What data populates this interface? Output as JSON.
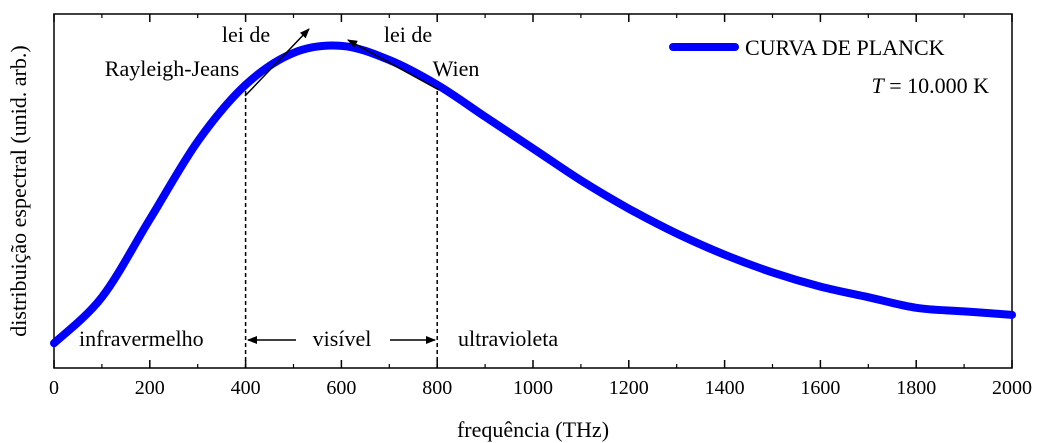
{
  "chart_data": {
    "type": "line",
    "xlabel": "frequência (THz)",
    "ylabel": "distribuição espectral (unid. arb.)",
    "xlim": [
      0,
      2000
    ],
    "y_ticks_labeled": false,
    "grid": false,
    "x_ticks": [
      "0",
      "200",
      "400",
      "600",
      "800",
      "1000",
      "1200",
      "1400",
      "1600",
      "1800",
      "2000"
    ],
    "series": [
      {
        "name": "CURVA DE PLANCK",
        "color": "#0000ff",
        "x": [
          0,
          100,
          200,
          300,
          400,
          500,
          600,
          700,
          800,
          900,
          1000,
          1100,
          1200,
          1300,
          1400,
          1500,
          1600,
          1700,
          1800,
          1900,
          2000
        ],
        "y": [
          0.07,
          0.2,
          0.42,
          0.64,
          0.8,
          0.89,
          0.91,
          0.87,
          0.8,
          0.71,
          0.62,
          0.53,
          0.45,
          0.38,
          0.32,
          0.27,
          0.23,
          0.2,
          0.17,
          0.16,
          0.15
        ]
      }
    ],
    "legend": {
      "position": "top-right",
      "entry": "CURVA DE PLANCK",
      "temp_symbol": "T",
      "temp_value": " = 10.000 K"
    },
    "regions": {
      "infrared": "infravermelho",
      "visible": "visível",
      "ultraviolet": "ultravioleta",
      "visible_range": [
        400,
        800
      ]
    },
    "annotations": {
      "rayleigh_line1": "lei de",
      "rayleigh_line2": "Rayleigh-Jeans",
      "wien_line1": "lei de",
      "wien_line2": "Wien"
    }
  }
}
